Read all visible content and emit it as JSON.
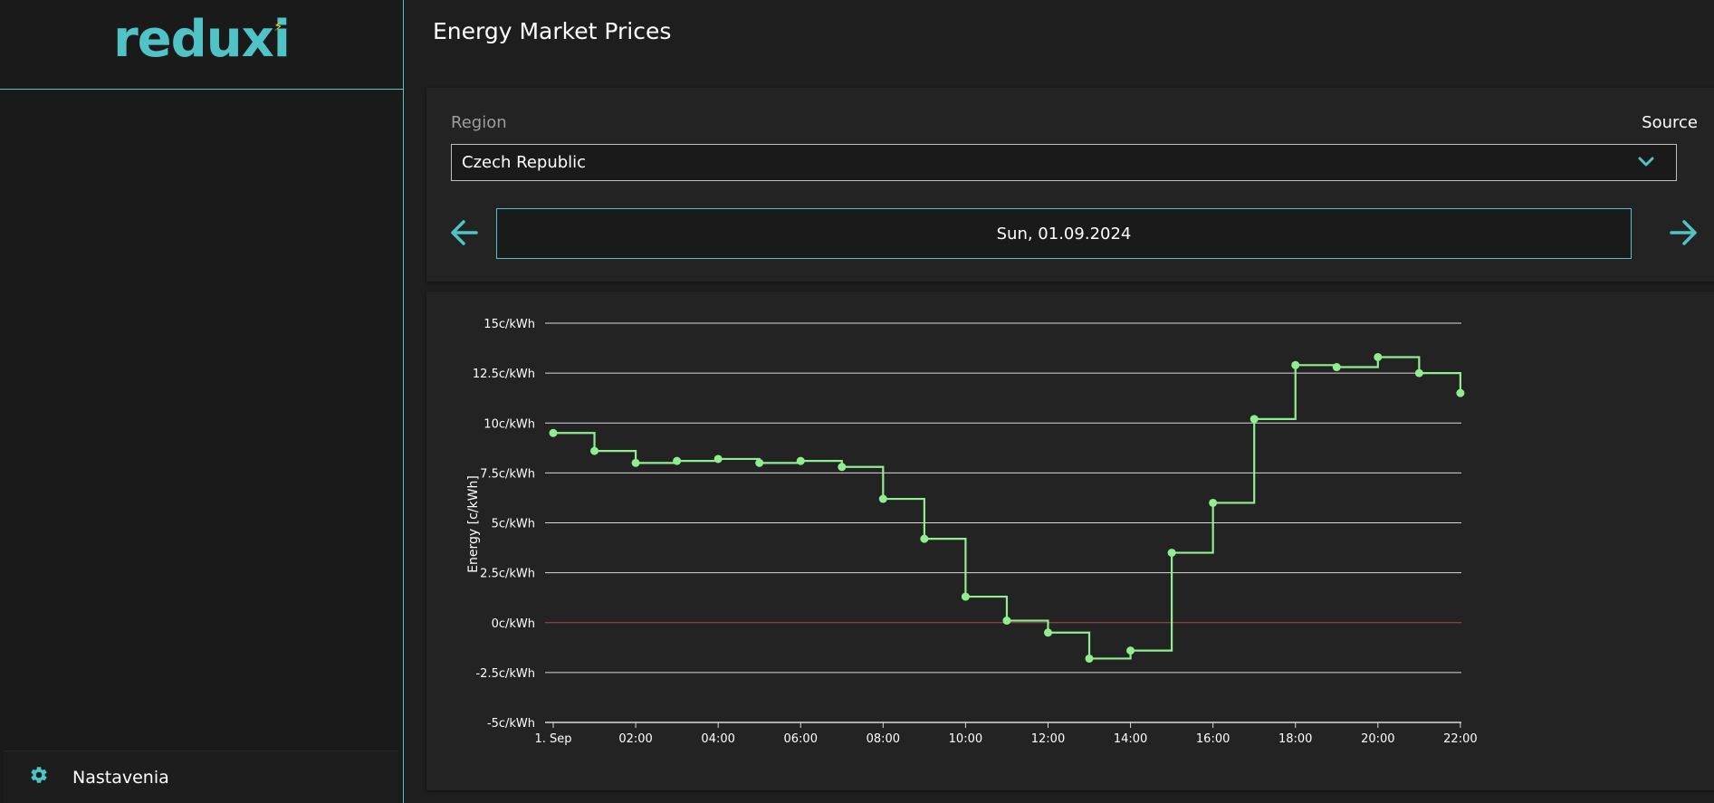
{
  "app": {
    "logo_text": "reduxi"
  },
  "sidebar": {
    "settings_label": "Nastavenia"
  },
  "page": {
    "title": "Energy Market Prices"
  },
  "controls": {
    "region_label": "Region",
    "source_label": "Source",
    "region_value": "Czech Republic",
    "date": "Sun, 01.09.2024"
  },
  "colors": {
    "accent": "#4fc3c5",
    "line": "#90ee90",
    "zero_line": "#a05050",
    "grid": "#d9d9d9",
    "bolt": "#f5c518"
  },
  "chart_data": {
    "type": "line",
    "step": true,
    "ylabel": "Energy [c/kWh]",
    "ylim": [
      -5,
      15
    ],
    "yticks": [
      "15c/kWh",
      "12.5c/kWh",
      "10c/kWh",
      "7.5c/kWh",
      "5c/kWh",
      "2.5c/kWh",
      "0c/kWh",
      "-2.5c/kWh",
      "-5c/kWh"
    ],
    "ytick_values": [
      15,
      12.5,
      10,
      7.5,
      5,
      2.5,
      0,
      -2.5,
      -5
    ],
    "xticks": [
      "1. Sep",
      "02:00",
      "04:00",
      "06:00",
      "08:00",
      "10:00",
      "12:00",
      "14:00",
      "16:00",
      "18:00",
      "20:00",
      "22:00"
    ],
    "xtick_hours": [
      0,
      2,
      4,
      6,
      8,
      10,
      12,
      14,
      16,
      18,
      20,
      22
    ],
    "xlim": [
      0,
      22.2
    ],
    "series": [
      {
        "hours": [
          0,
          1,
          2,
          3,
          4,
          5,
          6,
          7,
          8,
          9,
          10,
          11,
          12,
          13,
          14,
          15,
          16,
          17,
          18,
          19,
          20,
          21,
          22
        ],
        "values": [
          9.5,
          8.6,
          8.0,
          8.1,
          8.2,
          8.0,
          8.1,
          7.8,
          6.2,
          4.2,
          1.3,
          0.1,
          -0.5,
          -1.8,
          -1.4,
          3.5,
          6.0,
          10.2,
          12.9,
          12.8,
          13.3,
          12.5,
          11.5
        ]
      }
    ]
  }
}
